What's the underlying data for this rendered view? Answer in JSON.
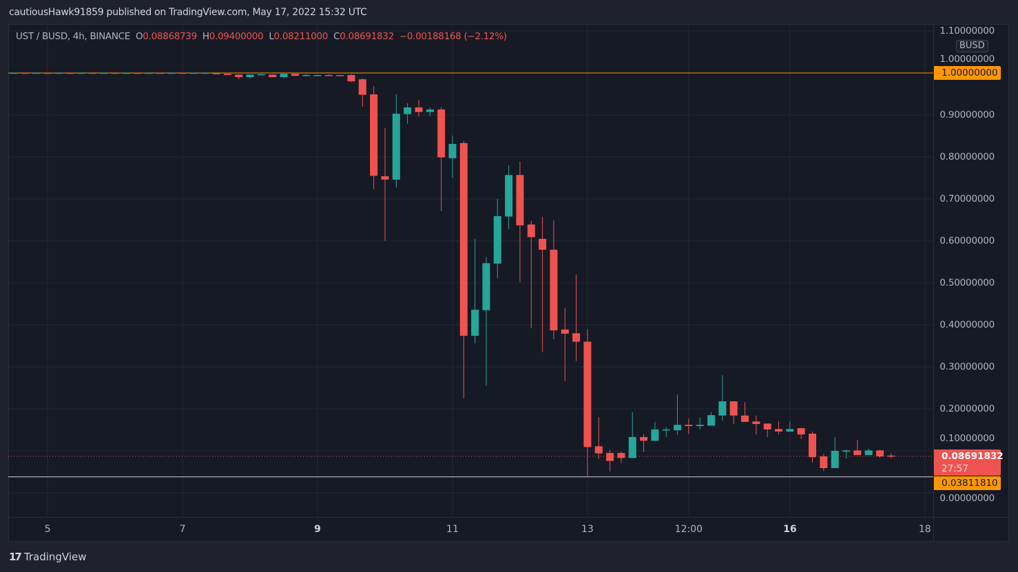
{
  "header": {
    "publish_text": "cautiousHawk91859 published on TradingView.com, May 17, 2022 15:32 UTC"
  },
  "legend": {
    "symbol": "UST / BUSD, 4h, BINANCE",
    "o_label": "O",
    "o": "0.08868739",
    "h_label": "H",
    "h": "0.09400000",
    "l_label": "L",
    "l": "0.08211000",
    "c_label": "C",
    "c": "0.08691832",
    "change": "−0.00188168 (−2.12%)"
  },
  "currency_badge": "BUSD",
  "price_tags": {
    "level_high": "1.00000000",
    "last_price": "0.08691832",
    "countdown": "27:57",
    "level_low": "0.03811810"
  },
  "footer": {
    "logo_text": "TradingView"
  },
  "colors": {
    "up": "#26a69a",
    "down": "#ef5350",
    "level": "#ff9800",
    "low_line": "#d1d4dc",
    "background": "#161a25",
    "grid": "#242833"
  },
  "chart_data": {
    "type": "candlestick",
    "symbol": "UST / BUSD",
    "interval": "4h",
    "exchange": "BINANCE",
    "ylim": [
      -0.06,
      1.12
    ],
    "y_ticks": [
      "0.00000000",
      "0.10000000",
      "0.20000000",
      "0.30000000",
      "0.40000000",
      "0.50000000",
      "0.60000000",
      "0.70000000",
      "0.80000000",
      "0.90000000",
      "1.00000000",
      "1.10000000"
    ],
    "x_ticks": [
      {
        "label": "5",
        "t": "2022-05-05T00:00",
        "bold": false
      },
      {
        "label": "7",
        "t": "2022-05-07T00:00",
        "bold": false
      },
      {
        "label": "9",
        "t": "2022-05-09T00:00",
        "bold": true
      },
      {
        "label": "11",
        "t": "2022-05-11T00:00",
        "bold": false
      },
      {
        "label": "13",
        "t": "2022-05-13T00:00",
        "bold": false
      },
      {
        "label": "12:00",
        "t": "2022-05-14T12:00",
        "bold": false
      },
      {
        "label": "16",
        "t": "2022-05-16T00:00",
        "bold": true
      },
      {
        "label": "18",
        "t": "2022-05-18T00:00",
        "bold": false
      }
    ],
    "horizontal_lines": [
      {
        "price": 1.0,
        "color": "#ff9800"
      },
      {
        "price": 0.0381181,
        "color": "#d1d4dc"
      }
    ],
    "last_price": 0.08691832,
    "candles_columns": [
      "t",
      "open",
      "high",
      "low",
      "close"
    ],
    "candles": [
      [
        "2022-05-04T12:00",
        1.0,
        1.001,
        0.999,
        1.0005
      ],
      [
        "2022-05-04T16:00",
        1.0005,
        1.001,
        0.999,
        0.9995
      ],
      [
        "2022-05-04T20:00",
        0.9995,
        1.001,
        0.999,
        1.0005
      ],
      [
        "2022-05-05T00:00",
        1.0005,
        1.001,
        0.999,
        0.9995
      ],
      [
        "2022-05-05T04:00",
        0.9995,
        1.001,
        0.999,
        1.0005
      ],
      [
        "2022-05-05T08:00",
        1.0005,
        1.001,
        0.999,
        0.9995
      ],
      [
        "2022-05-05T12:00",
        0.9995,
        1.001,
        0.999,
        1.0005
      ],
      [
        "2022-05-05T16:00",
        1.0005,
        1.001,
        0.999,
        0.9995
      ],
      [
        "2022-05-05T20:00",
        0.9995,
        1.001,
        0.999,
        1.0005
      ],
      [
        "2022-05-06T00:00",
        1.0005,
        1.001,
        0.999,
        0.9995
      ],
      [
        "2022-05-06T04:00",
        0.9995,
        1.001,
        0.999,
        1.0005
      ],
      [
        "2022-05-06T08:00",
        1.0005,
        1.001,
        0.999,
        0.9995
      ],
      [
        "2022-05-06T12:00",
        0.9995,
        1.001,
        0.999,
        1.0005
      ],
      [
        "2022-05-06T16:00",
        1.0005,
        1.001,
        0.999,
        0.9995
      ],
      [
        "2022-05-06T20:00",
        0.9995,
        1.001,
        0.999,
        1.0005
      ],
      [
        "2022-05-07T00:00",
        1.0005,
        1.001,
        0.999,
        0.9995
      ],
      [
        "2022-05-07T04:00",
        0.9995,
        1.001,
        0.999,
        1.0005
      ],
      [
        "2022-05-07T08:00",
        1.0,
        1.0,
        1.0,
        1.0005
      ],
      [
        "2022-05-07T12:00",
        1.0,
        1.0,
        0.997,
        0.997
      ],
      [
        "2022-05-07T16:00",
        0.998,
        0.998,
        0.995,
        0.995
      ],
      [
        "2022-05-07T20:00",
        0.996,
        0.996,
        0.985,
        0.99
      ],
      [
        "2022-05-08T00:00",
        0.99,
        0.996,
        0.987,
        0.996
      ],
      [
        "2022-05-08T04:00",
        0.996,
        0.998,
        0.996,
        0.997
      ],
      [
        "2022-05-08T08:00",
        0.996,
        0.996,
        0.99,
        0.99
      ],
      [
        "2022-05-08T12:00",
        0.99,
        0.998,
        0.988,
        0.998
      ],
      [
        "2022-05-08T16:00",
        0.998,
        0.998,
        0.993,
        0.993
      ],
      [
        "2022-05-08T20:00",
        0.993,
        0.997,
        0.993,
        0.995
      ],
      [
        "2022-05-09T00:00",
        0.994,
        0.996,
        0.994,
        0.995
      ],
      [
        "2022-05-09T04:00",
        0.995,
        0.997,
        0.994,
        0.994
      ],
      [
        "2022-05-09T08:00",
        0.995,
        0.995,
        0.993,
        0.993
      ],
      [
        "2022-05-09T12:00",
        0.995,
        0.997,
        0.978,
        0.98
      ],
      [
        "2022-05-09T16:00",
        0.985,
        0.987,
        0.92,
        0.948
      ],
      [
        "2022-05-09T20:00",
        0.949,
        0.969,
        0.723,
        0.755
      ],
      [
        "2022-05-10T00:00",
        0.754,
        0.869,
        0.6,
        0.746
      ],
      [
        "2022-05-10T04:00",
        0.746,
        0.949,
        0.727,
        0.903
      ],
      [
        "2022-05-10T08:00",
        0.902,
        0.928,
        0.879,
        0.918
      ],
      [
        "2022-05-10T12:00",
        0.918,
        0.936,
        0.896,
        0.907
      ],
      [
        "2022-05-10T16:00",
        0.907,
        0.918,
        0.897,
        0.913
      ],
      [
        "2022-05-10T20:00",
        0.913,
        0.918,
        0.671,
        0.799
      ],
      [
        "2022-05-11T00:00",
        0.797,
        0.851,
        0.75,
        0.831
      ],
      [
        "2022-05-11T04:00",
        0.833,
        0.838,
        0.225,
        0.374
      ],
      [
        "2022-05-11T08:00",
        0.374,
        0.605,
        0.356,
        0.436
      ],
      [
        "2022-05-11T12:00",
        0.435,
        0.561,
        0.255,
        0.547
      ],
      [
        "2022-05-11T16:00",
        0.546,
        0.7,
        0.512,
        0.659
      ],
      [
        "2022-05-11T20:00",
        0.658,
        0.78,
        0.628,
        0.757
      ],
      [
        "2022-05-12T00:00",
        0.757,
        0.789,
        0.502,
        0.637
      ],
      [
        "2022-05-12T04:00",
        0.639,
        0.648,
        0.392,
        0.609
      ],
      [
        "2022-05-12T08:00",
        0.605,
        0.657,
        0.335,
        0.579
      ],
      [
        "2022-05-12T12:00",
        0.579,
        0.649,
        0.366,
        0.387
      ],
      [
        "2022-05-12T16:00",
        0.389,
        0.441,
        0.266,
        0.379
      ],
      [
        "2022-05-12T20:00",
        0.38,
        0.52,
        0.314,
        0.36
      ],
      [
        "2022-05-13T00:00",
        0.36,
        0.39,
        0.0381181,
        0.109
      ],
      [
        "2022-05-13T04:00",
        0.111,
        0.18,
        0.081,
        0.094
      ],
      [
        "2022-05-13T08:00",
        0.095,
        0.102,
        0.051,
        0.076
      ],
      [
        "2022-05-13T12:00",
        0.095,
        0.098,
        0.071,
        0.083
      ],
      [
        "2022-05-13T16:00",
        0.083,
        0.192,
        0.083,
        0.133
      ],
      [
        "2022-05-13T20:00",
        0.133,
        0.14,
        0.097,
        0.124
      ],
      [
        "2022-05-14T00:00",
        0.124,
        0.169,
        0.122,
        0.151
      ],
      [
        "2022-05-14T04:00",
        0.15,
        0.156,
        0.133,
        0.151
      ],
      [
        "2022-05-14T08:00",
        0.149,
        0.234,
        0.138,
        0.162
      ],
      [
        "2022-05-14T12:00",
        0.162,
        0.177,
        0.14,
        0.159
      ],
      [
        "2022-05-14T16:00",
        0.159,
        0.18,
        0.151,
        0.162
      ],
      [
        "2022-05-14T20:00",
        0.16,
        0.192,
        0.16,
        0.185
      ],
      [
        "2022-05-15T00:00",
        0.184,
        0.28,
        0.172,
        0.218
      ],
      [
        "2022-05-15T04:00",
        0.218,
        0.218,
        0.164,
        0.184
      ],
      [
        "2022-05-15T08:00",
        0.184,
        0.216,
        0.169,
        0.169
      ],
      [
        "2022-05-15T12:00",
        0.17,
        0.184,
        0.139,
        0.164
      ],
      [
        "2022-05-15T16:00",
        0.165,
        0.165,
        0.133,
        0.151
      ],
      [
        "2022-05-15T20:00",
        0.152,
        0.17,
        0.139,
        0.146
      ],
      [
        "2022-05-16T00:00",
        0.146,
        0.17,
        0.146,
        0.152
      ],
      [
        "2022-05-16T04:00",
        0.154,
        0.155,
        0.128,
        0.139
      ],
      [
        "2022-05-16T08:00",
        0.141,
        0.146,
        0.072,
        0.085
      ],
      [
        "2022-05-16T12:00",
        0.087,
        0.093,
        0.052,
        0.059
      ],
      [
        "2022-05-16T16:00",
        0.059,
        0.133,
        0.059,
        0.1
      ],
      [
        "2022-05-16T20:00",
        0.098,
        0.103,
        0.082,
        0.101
      ],
      [
        "2022-05-17T00:00",
        0.101,
        0.126,
        0.09,
        0.09
      ],
      [
        "2022-05-17T04:00",
        0.09,
        0.105,
        0.09,
        0.101
      ],
      [
        "2022-05-17T08:00",
        0.101,
        0.103,
        0.084,
        0.087
      ],
      [
        "2022-05-17T12:00",
        0.08868739,
        0.094,
        0.08211,
        0.08691832
      ]
    ]
  }
}
